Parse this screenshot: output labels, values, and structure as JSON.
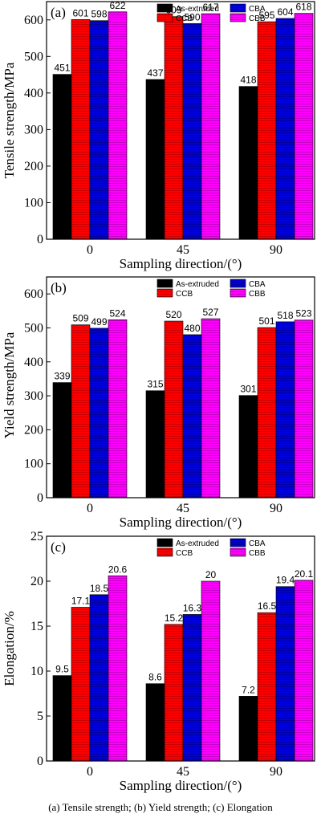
{
  "colors": {
    "As-extruded": "#000000",
    "CCB": "#ff0000",
    "CBA": "#0000dd",
    "CBB": "#ff00ff"
  },
  "caption": "(a) Tensile strength; (b) Yield strength; (c) Elongation",
  "chart_data": [
    {
      "type": "bar",
      "panel_label": "(a)",
      "categories": [
        "0",
        "45",
        "90"
      ],
      "xlabel": "Sampling direction/(°)",
      "ylabel": "Tensile strength/MPa",
      "ylim": [
        0,
        650
      ],
      "yticks": [
        0,
        100,
        200,
        300,
        400,
        500,
        600
      ],
      "legend_position": "top",
      "series": [
        {
          "name": "As-extruded",
          "values": [
            451,
            437,
            418
          ],
          "labels": [
            "451",
            "437",
            "418"
          ]
        },
        {
          "name": "CCB",
          "values": [
            601,
            609,
            595
          ],
          "labels": [
            "601",
            "609",
            "595"
          ]
        },
        {
          "name": "CBA",
          "values": [
            598,
            590,
            604
          ],
          "labels": [
            "598",
            "590",
            "604"
          ]
        },
        {
          "name": "CBB",
          "values": [
            622,
            617,
            618
          ],
          "labels": [
            "622",
            "617",
            "618"
          ]
        }
      ]
    },
    {
      "type": "bar",
      "panel_label": "(b)",
      "categories": [
        "0",
        "45",
        "90"
      ],
      "xlabel": "Sampling direction/(°)",
      "ylabel": "Yield strength/MPa",
      "ylim": [
        0,
        650
      ],
      "yticks": [
        0,
        100,
        200,
        300,
        400,
        500,
        600
      ],
      "legend_position": "top",
      "series": [
        {
          "name": "As-extruded",
          "values": [
            339,
            315,
            301
          ],
          "labels": [
            "339",
            "315",
            "301"
          ]
        },
        {
          "name": "CCB",
          "values": [
            509,
            520,
            501
          ],
          "labels": [
            "509",
            "520",
            "501"
          ]
        },
        {
          "name": "CBA",
          "values": [
            499,
            480,
            518
          ],
          "labels": [
            "499",
            "480",
            "518"
          ]
        },
        {
          "name": "CBB",
          "values": [
            524,
            527,
            523
          ],
          "labels": [
            "524",
            "527",
            "523"
          ]
        }
      ]
    },
    {
      "type": "bar",
      "panel_label": "(c)",
      "categories": [
        "0",
        "45",
        "90"
      ],
      "xlabel": "Sampling direction/(°)",
      "ylabel": "Elongation/%",
      "ylim": [
        0,
        25
      ],
      "yticks": [
        0,
        5,
        10,
        15,
        20,
        25
      ],
      "legend_position": "top",
      "series": [
        {
          "name": "As-extruded",
          "values": [
            9.5,
            8.6,
            7.2
          ],
          "labels": [
            "9.5",
            "8.6",
            "7.2"
          ]
        },
        {
          "name": "CCB",
          "values": [
            17.1,
            15.2,
            16.5
          ],
          "labels": [
            "17.1",
            "15.2",
            "16.5"
          ]
        },
        {
          "name": "CBA",
          "values": [
            18.5,
            16.3,
            19.4
          ],
          "labels": [
            "18.5",
            "16.3",
            "19.4"
          ]
        },
        {
          "name": "CBB",
          "values": [
            20.6,
            20,
            20.1
          ],
          "labels": [
            "20.6",
            "20",
            "20.1"
          ]
        }
      ]
    }
  ]
}
